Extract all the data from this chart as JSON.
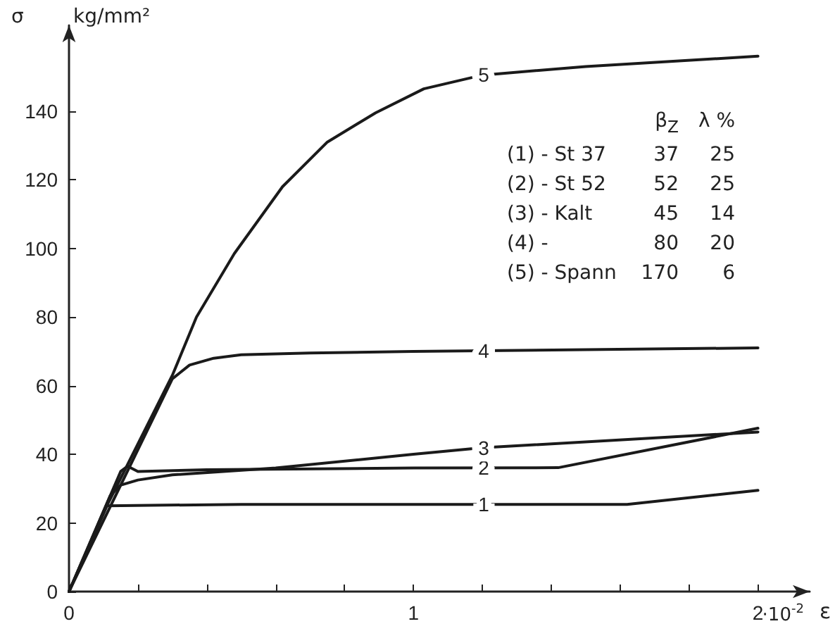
{
  "chart_data": {
    "type": "line",
    "xlabel": "·10$^{-2}$ ε",
    "ylabel": "σ kg/mm²",
    "xlim": [
      0,
      2.15
    ],
    "ylim": [
      0,
      165
    ],
    "xticks": [
      0,
      {
        "value": 0.2,
        "label": null
      },
      {
        "value": 0.4,
        "label": null
      },
      {
        "value": 0.6,
        "label": null
      },
      {
        "value": 0.8,
        "label": null
      },
      1,
      {
        "value": 1.2,
        "label": null
      },
      {
        "value": 1.4,
        "label": null
      },
      {
        "value": 1.6,
        "label": null
      },
      {
        "value": 1.8,
        "label": null
      },
      2
    ],
    "yticks": [
      0,
      20,
      40,
      60,
      80,
      100,
      120,
      140
    ],
    "grid": false,
    "marker": "none",
    "line_style": "solid",
    "series": [
      {
        "name": "1",
        "color": "#1a1a1a",
        "x": [
          0,
          0.11,
          0.5,
          1.0,
          1.62,
          2.0
        ],
        "values": [
          0,
          25,
          25.4,
          25.4,
          25.4,
          29.5
        ]
      },
      {
        "name": "2",
        "color": "#1a1a1a",
        "x": [
          0,
          0.15,
          0.17,
          0.18,
          0.2,
          0.4,
          1.0,
          1.42,
          2.0
        ],
        "values": [
          0,
          35,
          36.5,
          36,
          35,
          35.5,
          36,
          36.1,
          47.6
        ]
      },
      {
        "name": "3",
        "color": "#1a1a1a",
        "x": [
          0,
          0.12,
          0.15,
          0.2,
          0.3,
          0.6,
          1.0,
          1.2,
          2.0
        ],
        "values": [
          0,
          28,
          31,
          32.5,
          34,
          36,
          40,
          41.9,
          46.5
        ]
      },
      {
        "name": "4",
        "color": "#1a1a1a",
        "x": [
          0,
          0.3,
          0.35,
          0.42,
          0.5,
          0.7,
          1.0,
          2.0
        ],
        "values": [
          0,
          62,
          66,
          68,
          69,
          69.5,
          70,
          71
        ]
      },
      {
        "name": "5",
        "color": "#1a1a1a",
        "x": [
          0,
          0.11,
          0.3,
          0.37,
          0.48,
          0.62,
          0.75,
          0.89,
          1.03,
          1.2,
          1.5,
          2.0
        ],
        "values": [
          0,
          25,
          63,
          80,
          98.5,
          118,
          131,
          139.5,
          146.5,
          150.5,
          153,
          156
        ]
      }
    ],
    "annotations": [
      "β$_{Z}$",
      "λ %",
      "(1) - St 37",
      "37",
      "25",
      "(2) - St 52",
      "52",
      "25",
      "(3) - Kalt",
      "45",
      "14",
      "(4) -",
      "80",
      "20",
      "(5) - Spann",
      "170",
      "6"
    ]
  }
}
